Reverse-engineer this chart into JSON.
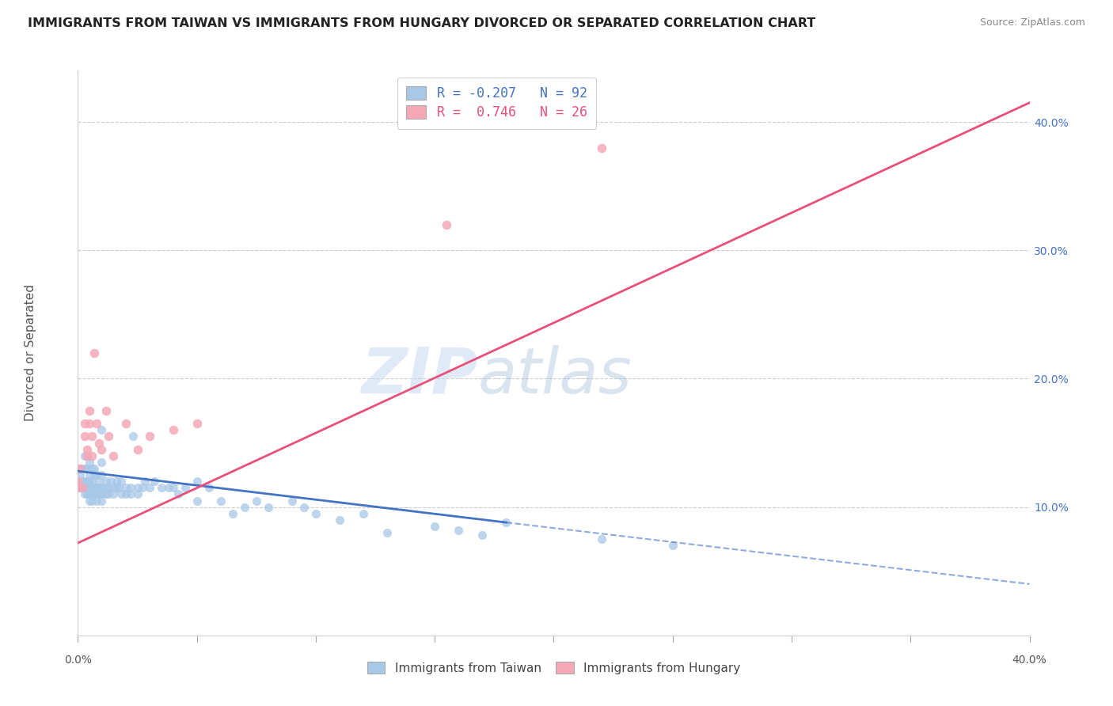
{
  "title": "IMMIGRANTS FROM TAIWAN VS IMMIGRANTS FROM HUNGARY DIVORCED OR SEPARATED CORRELATION CHART",
  "source": "Source: ZipAtlas.com",
  "ylabel": "Divorced or Separated",
  "xlim": [
    0.0,
    0.4
  ],
  "ylim": [
    0.0,
    0.44
  ],
  "right_yticks": [
    0.1,
    0.2,
    0.3,
    0.4
  ],
  "right_ytick_labels": [
    "10.0%",
    "20.0%",
    "30.0%",
    "40.0%"
  ],
  "xticks": [
    0.0,
    0.05,
    0.1,
    0.15,
    0.2,
    0.25,
    0.3,
    0.35,
    0.4
  ],
  "xtick_labels_shown": {
    "0.0": "0.0%",
    "0.40": "40.0%"
  },
  "taiwan_color": "#a8c8e8",
  "hungary_color": "#f4a8b8",
  "taiwan_line_color": "#4472c4",
  "hungary_line_color": "#e8507a",
  "taiwan_R": -0.207,
  "taiwan_N": 92,
  "hungary_R": 0.746,
  "hungary_N": 26,
  "taiwan_trendline_solid": [
    [
      0.0,
      0.128
    ],
    [
      0.18,
      0.088
    ]
  ],
  "taiwan_trendline_dash": [
    [
      0.18,
      0.088
    ],
    [
      0.4,
      0.04
    ]
  ],
  "hungary_trendline_solid": [
    [
      0.0,
      0.072
    ],
    [
      0.4,
      0.415
    ]
  ],
  "taiwan_scatter": [
    [
      0.0,
      0.13
    ],
    [
      0.001,
      0.125
    ],
    [
      0.001,
      0.115
    ],
    [
      0.002,
      0.13
    ],
    [
      0.002,
      0.12
    ],
    [
      0.002,
      0.115
    ],
    [
      0.003,
      0.14
    ],
    [
      0.003,
      0.13
    ],
    [
      0.003,
      0.12
    ],
    [
      0.003,
      0.115
    ],
    [
      0.003,
      0.11
    ],
    [
      0.004,
      0.13
    ],
    [
      0.004,
      0.12
    ],
    [
      0.004,
      0.115
    ],
    [
      0.004,
      0.11
    ],
    [
      0.005,
      0.135
    ],
    [
      0.005,
      0.125
    ],
    [
      0.005,
      0.12
    ],
    [
      0.005,
      0.115
    ],
    [
      0.005,
      0.11
    ],
    [
      0.005,
      0.105
    ],
    [
      0.006,
      0.13
    ],
    [
      0.006,
      0.12
    ],
    [
      0.006,
      0.115
    ],
    [
      0.006,
      0.11
    ],
    [
      0.006,
      0.105
    ],
    [
      0.007,
      0.13
    ],
    [
      0.007,
      0.125
    ],
    [
      0.007,
      0.115
    ],
    [
      0.007,
      0.11
    ],
    [
      0.008,
      0.125
    ],
    [
      0.008,
      0.115
    ],
    [
      0.008,
      0.11
    ],
    [
      0.008,
      0.105
    ],
    [
      0.009,
      0.12
    ],
    [
      0.009,
      0.115
    ],
    [
      0.009,
      0.11
    ],
    [
      0.01,
      0.16
    ],
    [
      0.01,
      0.135
    ],
    [
      0.01,
      0.125
    ],
    [
      0.01,
      0.115
    ],
    [
      0.01,
      0.11
    ],
    [
      0.01,
      0.105
    ],
    [
      0.012,
      0.12
    ],
    [
      0.012,
      0.115
    ],
    [
      0.012,
      0.11
    ],
    [
      0.013,
      0.115
    ],
    [
      0.013,
      0.11
    ],
    [
      0.014,
      0.12
    ],
    [
      0.015,
      0.115
    ],
    [
      0.015,
      0.11
    ],
    [
      0.016,
      0.12
    ],
    [
      0.016,
      0.115
    ],
    [
      0.017,
      0.115
    ],
    [
      0.018,
      0.12
    ],
    [
      0.018,
      0.11
    ],
    [
      0.02,
      0.115
    ],
    [
      0.02,
      0.11
    ],
    [
      0.022,
      0.115
    ],
    [
      0.022,
      0.11
    ],
    [
      0.023,
      0.155
    ],
    [
      0.025,
      0.115
    ],
    [
      0.025,
      0.11
    ],
    [
      0.027,
      0.115
    ],
    [
      0.028,
      0.12
    ],
    [
      0.03,
      0.115
    ],
    [
      0.032,
      0.12
    ],
    [
      0.035,
      0.115
    ],
    [
      0.038,
      0.115
    ],
    [
      0.04,
      0.115
    ],
    [
      0.042,
      0.11
    ],
    [
      0.045,
      0.115
    ],
    [
      0.05,
      0.12
    ],
    [
      0.05,
      0.105
    ],
    [
      0.055,
      0.115
    ],
    [
      0.06,
      0.105
    ],
    [
      0.065,
      0.095
    ],
    [
      0.07,
      0.1
    ],
    [
      0.075,
      0.105
    ],
    [
      0.08,
      0.1
    ],
    [
      0.09,
      0.105
    ],
    [
      0.095,
      0.1
    ],
    [
      0.1,
      0.095
    ],
    [
      0.11,
      0.09
    ],
    [
      0.12,
      0.095
    ],
    [
      0.13,
      0.08
    ],
    [
      0.15,
      0.085
    ],
    [
      0.16,
      0.082
    ],
    [
      0.17,
      0.078
    ],
    [
      0.18,
      0.088
    ],
    [
      0.22,
      0.075
    ],
    [
      0.25,
      0.07
    ]
  ],
  "hungary_scatter": [
    [
      0.0,
      0.12
    ],
    [
      0.0,
      0.115
    ],
    [
      0.001,
      0.13
    ],
    [
      0.002,
      0.115
    ],
    [
      0.003,
      0.165
    ],
    [
      0.003,
      0.155
    ],
    [
      0.004,
      0.145
    ],
    [
      0.004,
      0.14
    ],
    [
      0.005,
      0.175
    ],
    [
      0.005,
      0.165
    ],
    [
      0.006,
      0.155
    ],
    [
      0.006,
      0.14
    ],
    [
      0.007,
      0.22
    ],
    [
      0.008,
      0.165
    ],
    [
      0.009,
      0.15
    ],
    [
      0.01,
      0.145
    ],
    [
      0.012,
      0.175
    ],
    [
      0.013,
      0.155
    ],
    [
      0.015,
      0.14
    ],
    [
      0.02,
      0.165
    ],
    [
      0.025,
      0.145
    ],
    [
      0.03,
      0.155
    ],
    [
      0.04,
      0.16
    ],
    [
      0.05,
      0.165
    ],
    [
      0.155,
      0.32
    ],
    [
      0.22,
      0.38
    ]
  ],
  "legend_taiwan_label": "Immigrants from Taiwan",
  "legend_hungary_label": "Immigrants from Hungary"
}
